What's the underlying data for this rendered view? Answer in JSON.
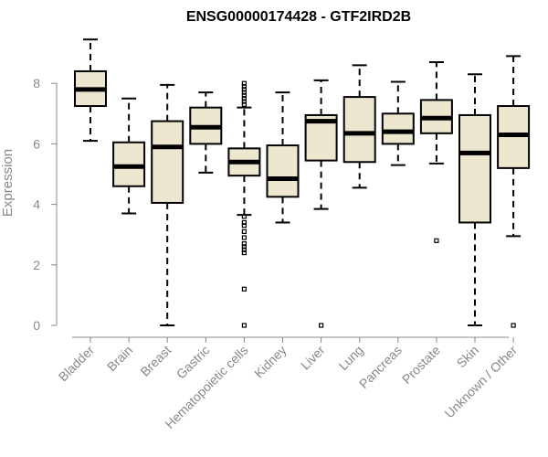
{
  "chart_data": {
    "type": "box",
    "title": "ENSG00000174428 - GTF2IRD2B",
    "xlabel": "",
    "ylabel": "Expression",
    "ylim": [
      0,
      9.5
    ],
    "yticks": [
      0,
      2,
      4,
      6,
      8
    ],
    "grid": false,
    "colors": {
      "box_fill": "#ede7cf",
      "stroke": "#000000",
      "axis_text": "#888888"
    },
    "categories": [
      "Bladder",
      "Brain",
      "Breast",
      "Gastric",
      "Hematopoietic cells",
      "Kidney",
      "Liver",
      "Lung",
      "Pancreas",
      "Prostate",
      "Skin",
      "Unknown / Other"
    ],
    "boxes": [
      {
        "name": "Bladder",
        "whisker_low": 6.1,
        "q1": 7.25,
        "median": 7.8,
        "q3": 8.4,
        "whisker_high": 9.45,
        "outliers": []
      },
      {
        "name": "Brain",
        "whisker_low": 3.7,
        "q1": 4.6,
        "median": 5.25,
        "q3": 6.05,
        "whisker_high": 7.5,
        "outliers": []
      },
      {
        "name": "Breast",
        "whisker_low": 0.0,
        "q1": 4.05,
        "median": 5.9,
        "q3": 6.75,
        "whisker_high": 7.95,
        "outliers": []
      },
      {
        "name": "Gastric",
        "whisker_low": 5.05,
        "q1": 6.0,
        "median": 6.55,
        "q3": 7.2,
        "whisker_high": 7.7,
        "outliers": []
      },
      {
        "name": "Hematopoietic cells",
        "whisker_low": 3.65,
        "q1": 4.95,
        "median": 5.4,
        "q3": 5.85,
        "whisker_high": 7.2,
        "outliers": [
          8.0,
          7.9,
          7.8,
          7.7,
          7.6,
          7.5,
          7.4,
          7.3,
          3.6,
          3.4,
          3.3,
          3.1,
          2.9,
          2.7,
          2.6,
          2.5,
          2.4,
          1.2,
          0.0
        ]
      },
      {
        "name": "Kidney",
        "whisker_low": 3.4,
        "q1": 4.25,
        "median": 4.85,
        "q3": 5.95,
        "whisker_high": 7.7,
        "outliers": []
      },
      {
        "name": "Liver",
        "whisker_low": 3.85,
        "q1": 5.45,
        "median": 6.75,
        "q3": 6.95,
        "whisker_high": 8.1,
        "outliers": [
          0.0
        ]
      },
      {
        "name": "Lung",
        "whisker_low": 4.55,
        "q1": 5.4,
        "median": 6.35,
        "q3": 7.55,
        "whisker_high": 8.6,
        "outliers": []
      },
      {
        "name": "Pancreas",
        "whisker_low": 5.3,
        "q1": 6.0,
        "median": 6.4,
        "q3": 7.0,
        "whisker_high": 8.05,
        "outliers": []
      },
      {
        "name": "Prostate",
        "whisker_low": 5.35,
        "q1": 6.35,
        "median": 6.85,
        "q3": 7.45,
        "whisker_high": 8.7,
        "outliers": [
          2.8
        ]
      },
      {
        "name": "Skin",
        "whisker_low": 0.0,
        "q1": 3.4,
        "median": 5.7,
        "q3": 6.95,
        "whisker_high": 8.3,
        "outliers": []
      },
      {
        "name": "Unknown / Other",
        "whisker_low": 2.95,
        "q1": 5.2,
        "median": 6.3,
        "q3": 7.25,
        "whisker_high": 8.9,
        "outliers": [
          0.0
        ]
      }
    ]
  }
}
